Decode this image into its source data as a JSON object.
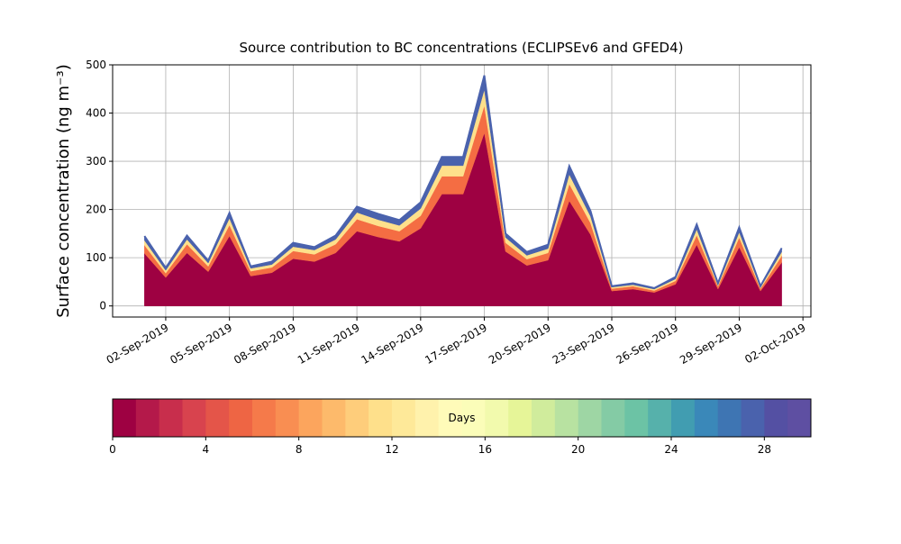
{
  "chart_data": {
    "type": "stacked_area",
    "title": "Source contribution to BC concentrations (ECLIPSEv6 and GFED4)",
    "y_label": "Surface concentration (ng m⁻³)",
    "x": [
      "2019-09-01",
      "2019-09-02",
      "2019-09-03",
      "2019-09-04",
      "2019-09-05",
      "2019-09-06",
      "2019-09-07",
      "2019-09-08",
      "2019-09-09",
      "2019-09-10",
      "2019-09-11",
      "2019-09-12",
      "2019-09-13",
      "2019-09-14",
      "2019-09-15",
      "2019-09-16",
      "2019-09-17",
      "2019-09-18",
      "2019-09-19",
      "2019-09-20",
      "2019-09-21",
      "2019-09-22",
      "2019-09-23",
      "2019-09-24",
      "2019-09-25",
      "2019-09-26",
      "2019-09-27",
      "2019-09-28",
      "2019-09-29",
      "2019-09-30",
      "2019-10-01"
    ],
    "series": [
      {
        "color": "#9e0142",
        "values": [
          109,
          59,
          110,
          71,
          145,
          62,
          69,
          98,
          92,
          110,
          155,
          143,
          134,
          161,
          232,
          232,
          359,
          113,
          84,
          95,
          218,
          148,
          31,
          35,
          28,
          45,
          127,
          35,
          122,
          31,
          90
        ]
      },
      {
        "color": "#f46d43",
        "values": [
          17,
          9,
          18,
          11,
          23,
          10,
          11,
          16,
          15,
          18,
          25,
          23,
          21,
          26,
          37,
          37,
          57,
          18,
          13,
          15,
          35,
          24,
          5,
          6,
          4,
          7,
          20,
          6,
          20,
          5,
          14
        ]
      },
      {
        "color": "#fee08b",
        "values": [
          10,
          6,
          10,
          7,
          14,
          6,
          6,
          9,
          9,
          10,
          14,
          13,
          12,
          15,
          22,
          22,
          33,
          11,
          8,
          9,
          20,
          14,
          3,
          3,
          3,
          4,
          12,
          3,
          11,
          3,
          8
        ]
      },
      {
        "color": "#4a62ad",
        "values": [
          9,
          5,
          8,
          5,
          11,
          4,
          6,
          8,
          6,
          8,
          12,
          12,
          11,
          13,
          18,
          18,
          29,
          8,
          7,
          8,
          17,
          11,
          2,
          3,
          2,
          4,
          10,
          3,
          10,
          2,
          8
        ]
      }
    ],
    "xlim": [
      "2019-08-30T12:00",
      "2019-10-02T09:00"
    ],
    "xticks": [
      {
        "value": "2019-09-02",
        "label": "02-Sep-2019"
      },
      {
        "value": "2019-09-05",
        "label": "05-Sep-2019"
      },
      {
        "value": "2019-09-08",
        "label": "08-Sep-2019"
      },
      {
        "value": "2019-09-11",
        "label": "11-Sep-2019"
      },
      {
        "value": "2019-09-14",
        "label": "14-Sep-2019"
      },
      {
        "value": "2019-09-17",
        "label": "17-Sep-2019"
      },
      {
        "value": "2019-09-20",
        "label": "20-Sep-2019"
      },
      {
        "value": "2019-09-23",
        "label": "23-Sep-2019"
      },
      {
        "value": "2019-09-26",
        "label": "26-Sep-2019"
      },
      {
        "value": "2019-09-29",
        "label": "29-Sep-2019"
      },
      {
        "value": "2019-10-02",
        "label": "02-Oct-2019"
      }
    ],
    "ylim": [
      -23,
      500
    ],
    "yticks": [
      0,
      100,
      200,
      300,
      400,
      500
    ],
    "grid": true,
    "colorbar": {
      "label": "Days",
      "lim": [
        0,
        30
      ],
      "ticks": [
        0,
        4,
        8,
        12,
        16,
        20,
        24,
        28
      ],
      "colors": [
        "#9e0142",
        "#b4194a",
        "#c82e4c",
        "#d8434e",
        "#e45549",
        "#ee6544",
        "#f57a4a",
        "#f98e52",
        "#fca55d",
        "#fdba6b",
        "#fecd7b",
        "#fee08b",
        "#fee999",
        "#fff2ac",
        "#fffbb9",
        "#fbfdb9",
        "#f2faad",
        "#e6f598",
        "#d0ec9c",
        "#b8e2a1",
        "#9ed6a4",
        "#84cba5",
        "#6cc3a5",
        "#56b1ab",
        "#419db1",
        "#3a88b9",
        "#3e75b3",
        "#4a62ad",
        "#5450a3",
        "#5e4fa2"
      ]
    }
  }
}
